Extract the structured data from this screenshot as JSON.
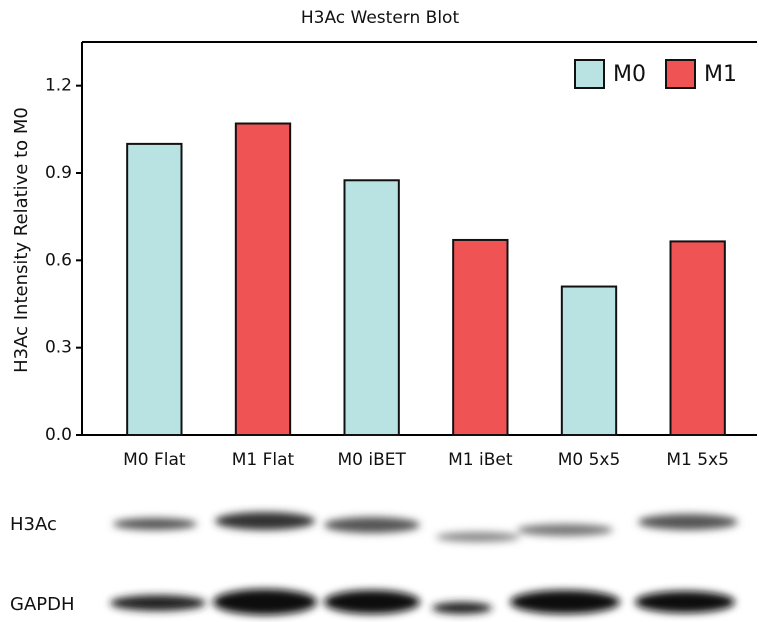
{
  "chart_data": {
    "type": "bar",
    "title": "H3Ac Western Blot",
    "ylabel": "H3Ac Intensity Relative to M0",
    "categories": [
      "M0 Flat",
      "M1 Flat",
      "M0 iBET",
      "M1 iBet",
      "M0 5x5",
      "M1 5x5"
    ],
    "series": [
      {
        "name": "M0",
        "color": "#b9e3e3",
        "values": [
          1.0,
          null,
          0.875,
          null,
          0.51,
          null
        ]
      },
      {
        "name": "M1",
        "color": "#ef5353",
        "values": [
          null,
          1.07,
          null,
          0.67,
          null,
          0.665
        ]
      }
    ],
    "ylim": [
      0,
      1.35
    ],
    "yticks": [
      {
        "value": 0,
        "label": "0.0"
      },
      0.3,
      0.6,
      0.9,
      1.2
    ],
    "legend": "upper right"
  },
  "blot": {
    "labels": [
      "H3Ac",
      "GAPDH"
    ]
  }
}
